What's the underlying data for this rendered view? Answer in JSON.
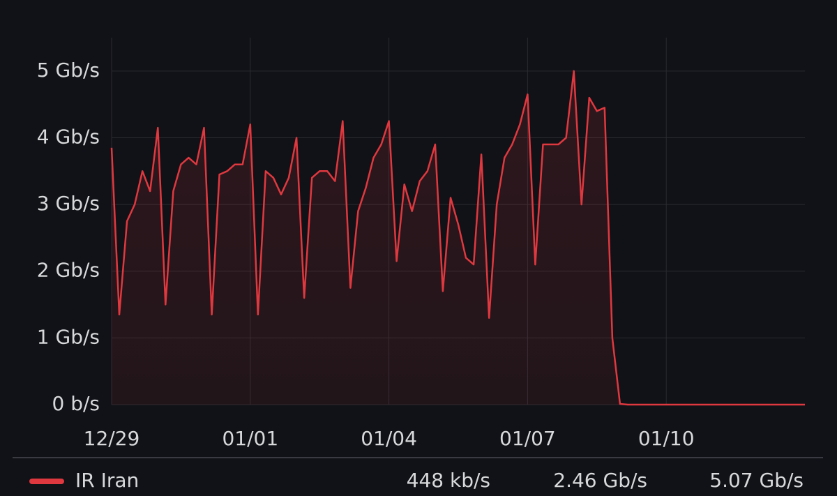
{
  "chart_data": {
    "type": "line",
    "categories": [
      "12/29",
      null,
      null,
      null,
      null,
      null,
      null,
      null,
      null,
      null,
      null,
      null,
      null,
      null,
      null,
      null,
      null,
      null,
      "01/01",
      null,
      null,
      null,
      null,
      null,
      null,
      null,
      null,
      null,
      null,
      null,
      null,
      null,
      null,
      null,
      null,
      null,
      "01/04",
      null,
      null,
      null,
      null,
      null,
      null,
      null,
      null,
      null,
      null,
      null,
      null,
      null,
      null,
      null,
      null,
      null,
      "01/07",
      null,
      null,
      null,
      null,
      null,
      null,
      null,
      null,
      null,
      null,
      null,
      null,
      null,
      null,
      null,
      null,
      null,
      "01/10",
      null,
      null,
      null,
      null,
      null,
      null,
      null,
      null,
      null,
      null,
      null,
      null,
      null,
      null,
      null,
      null,
      null,
      null
    ],
    "series": [
      {
        "name": "IR Iran",
        "color": "#e0383f",
        "values": [
          3.85,
          1.35,
          2.75,
          3.0,
          3.5,
          3.2,
          4.15,
          1.5,
          3.2,
          3.6,
          3.7,
          3.6,
          4.15,
          1.35,
          3.45,
          3.5,
          3.6,
          3.6,
          4.2,
          1.35,
          3.5,
          3.4,
          3.15,
          3.4,
          4.0,
          1.6,
          3.4,
          3.5,
          3.5,
          3.35,
          4.25,
          1.75,
          2.9,
          3.25,
          3.7,
          3.9,
          4.25,
          2.15,
          3.3,
          2.9,
          3.35,
          3.5,
          3.9,
          1.7,
          3.1,
          2.7,
          2.2,
          2.1,
          3.75,
          1.3,
          3.0,
          3.7,
          3.9,
          4.2,
          4.65,
          2.1,
          3.9,
          3.9,
          3.9,
          4.0,
          5.0,
          3.0,
          4.6,
          4.4,
          4.45,
          1.0,
          0.01,
          0.0005,
          0.0005,
          0.0005,
          0.0005,
          0.0005,
          0.0005,
          0.0005,
          0.0005,
          0.0005,
          0.0005,
          0.0005,
          0.0005,
          0.0005,
          0.0005,
          0.0005,
          0.0005,
          0.0005,
          0.0005,
          0.0005,
          0.0005,
          0.0005,
          0.0005,
          0.0005,
          0.0005
        ],
        "legend_values": [
          0.000448,
          2.46,
          5.07
        ],
        "legend_value_labels": [
          "448 kb/s",
          "2.46 Gb/s",
          "5.07 Gb/s"
        ]
      }
    ],
    "ylim": [
      0,
      5.5
    ],
    "yticks": [
      {
        "value": 0,
        "label": "0 b/s"
      },
      {
        "value": 1,
        "label": "1 Gb/s"
      },
      {
        "value": 2,
        "label": "2 Gb/s"
      },
      {
        "value": 3,
        "label": "3 Gb/s"
      },
      {
        "value": 4,
        "label": "4 Gb/s"
      },
      {
        "value": 5,
        "label": "5 Gb/s"
      }
    ],
    "grid": true
  }
}
